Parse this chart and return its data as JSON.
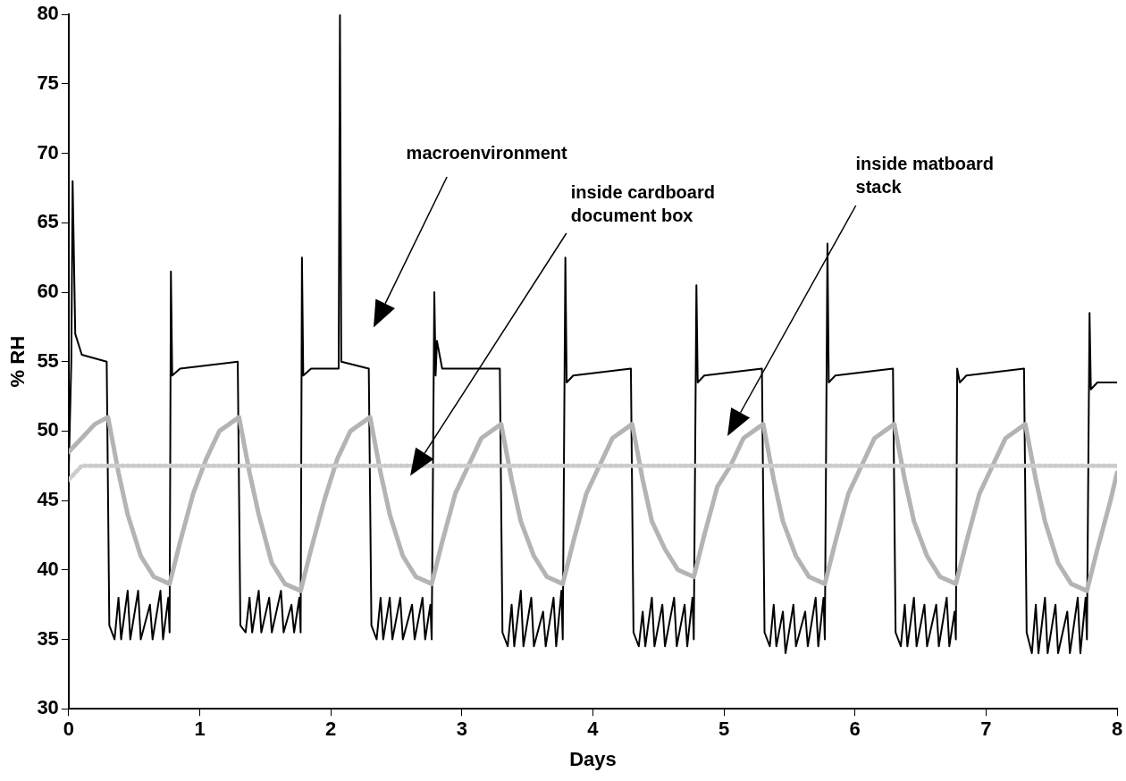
{
  "chart_data": {
    "type": "line",
    "xlabel": "Days",
    "ylabel": "% RH",
    "xlim": [
      0,
      8
    ],
    "xticks": [
      0,
      1,
      2,
      3,
      4,
      5,
      6,
      7,
      8
    ],
    "ylim": [
      30,
      80
    ],
    "yticks": [
      30,
      35,
      40,
      45,
      50,
      55,
      60,
      65,
      70,
      75,
      80
    ],
    "grid": false,
    "legend": false,
    "marker": "none",
    "line_style": "solid",
    "series": [
      {
        "color": "#000000",
        "x": [
          0,
          0.02,
          0.03,
          0.05,
          0.1,
          0.29,
          0.31,
          0.35,
          0.38,
          0.4,
          0.45,
          0.47,
          0.53,
          0.55,
          0.62,
          0.64,
          0.7,
          0.72,
          0.76,
          0.77,
          0.78,
          0.79,
          0.85,
          1.29,
          1.31,
          1.35,
          1.38,
          1.4,
          1.45,
          1.47,
          1.53,
          1.55,
          1.62,
          1.64,
          1.7,
          1.72,
          1.76,
          1.77,
          1.78,
          1.79,
          1.85,
          2.06,
          2.07,
          2.08,
          2.29,
          2.31,
          2.35,
          2.38,
          2.4,
          2.45,
          2.47,
          2.53,
          2.55,
          2.62,
          2.64,
          2.7,
          2.72,
          2.76,
          2.77,
          2.79,
          2.8,
          2.81,
          2.85,
          3.29,
          3.31,
          3.35,
          3.38,
          3.4,
          3.45,
          3.47,
          3.53,
          3.55,
          3.62,
          3.64,
          3.7,
          3.72,
          3.76,
          3.77,
          3.79,
          3.8,
          3.85,
          4.29,
          4.31,
          4.35,
          4.38,
          4.4,
          4.45,
          4.47,
          4.53,
          4.55,
          4.62,
          4.64,
          4.7,
          4.72,
          4.76,
          4.77,
          4.79,
          4.8,
          4.85,
          5.29,
          5.31,
          5.35,
          5.38,
          5.4,
          5.45,
          5.47,
          5.53,
          5.55,
          5.62,
          5.64,
          5.7,
          5.72,
          5.76,
          5.77,
          5.79,
          5.8,
          5.85,
          6.29,
          6.31,
          6.35,
          6.38,
          6.4,
          6.45,
          6.47,
          6.53,
          6.55,
          6.62,
          6.64,
          6.7,
          6.72,
          6.76,
          6.77,
          6.78,
          6.8,
          6.85,
          7.29,
          7.31,
          7.35,
          7.38,
          7.4,
          7.45,
          7.47,
          7.53,
          7.55,
          7.62,
          7.64,
          7.7,
          7.72,
          7.76,
          7.77,
          7.79,
          7.8,
          7.85,
          8
        ],
        "values": [
          47,
          55,
          68,
          57,
          55.5,
          55,
          36,
          35,
          38,
          35,
          38.5,
          35,
          38.5,
          35,
          37.5,
          35,
          38.5,
          35,
          38,
          35.5,
          61.5,
          54,
          54.5,
          55,
          36,
          35.5,
          38,
          35.5,
          38.5,
          35.5,
          38,
          35.5,
          38.5,
          35.5,
          37.5,
          35.5,
          38,
          35.5,
          62.5,
          54,
          54.5,
          54.5,
          80,
          55,
          54.5,
          36,
          35,
          38,
          35,
          38,
          35,
          38,
          35,
          37.5,
          35,
          38,
          35,
          37.5,
          35,
          60,
          54,
          56.5,
          54.5,
          54.5,
          35.5,
          34.5,
          37.5,
          34.5,
          38.5,
          34.5,
          38,
          34.5,
          37,
          34.5,
          38,
          34.5,
          38.5,
          35,
          62.5,
          53.5,
          54,
          54.5,
          35.5,
          34.5,
          37,
          34.5,
          38,
          34.5,
          37.5,
          34.5,
          38,
          34.5,
          37.5,
          34.5,
          38,
          35,
          60.5,
          53.5,
          54,
          54.5,
          35.5,
          34.5,
          37.5,
          34.5,
          37,
          34,
          37.5,
          34.5,
          37,
          34.5,
          38,
          34.5,
          38,
          35,
          63.5,
          53.5,
          54,
          54.5,
          35.5,
          34.5,
          37.5,
          34.5,
          38,
          34.5,
          37.5,
          34.5,
          37.5,
          34.5,
          38,
          34.5,
          37,
          35,
          54.5,
          53.5,
          54,
          54.5,
          35.5,
          34,
          37.5,
          34,
          38,
          34,
          37.5,
          34,
          37,
          34,
          38,
          34,
          38,
          35,
          58.5,
          53,
          53.5,
          53.5
        ]
      },
      {
        "color": "#b4b4b4",
        "x": [
          0,
          0.1,
          0.2,
          0.3,
          0.38,
          0.45,
          0.55,
          0.65,
          0.77,
          0.85,
          0.95,
          1.05,
          1.15,
          1.3,
          1.38,
          1.45,
          1.55,
          1.65,
          1.77,
          1.85,
          1.95,
          2.05,
          2.15,
          2.3,
          2.38,
          2.45,
          2.55,
          2.65,
          2.77,
          2.85,
          2.95,
          3.05,
          3.15,
          3.3,
          3.38,
          3.45,
          3.55,
          3.65,
          3.77,
          3.85,
          3.95,
          4.05,
          4.15,
          4.3,
          4.38,
          4.45,
          4.55,
          4.65,
          4.77,
          4.85,
          4.95,
          5.05,
          5.15,
          5.3,
          5.38,
          5.45,
          5.55,
          5.65,
          5.77,
          5.85,
          5.95,
          6.05,
          6.15,
          6.3,
          6.38,
          6.45,
          6.55,
          6.65,
          6.77,
          6.85,
          6.95,
          7.05,
          7.15,
          7.3,
          7.38,
          7.45,
          7.55,
          7.65,
          7.77,
          7.85,
          7.95,
          8
        ],
        "values": [
          48.5,
          49.5,
          50.5,
          51,
          47,
          44,
          41,
          39.5,
          39,
          42,
          45.5,
          48,
          50,
          51,
          47,
          44,
          40.5,
          39,
          38.5,
          41.5,
          45,
          48,
          50,
          51,
          47,
          44,
          41,
          39.5,
          39,
          42,
          45.5,
          47.5,
          49.5,
          50.5,
          46.5,
          43.5,
          41,
          39.5,
          39,
          42,
          45.5,
          47.5,
          49.5,
          50.5,
          46.5,
          43.5,
          41.5,
          40,
          39.5,
          42.5,
          46,
          47.5,
          49.5,
          50.5,
          46.5,
          43.5,
          41,
          39.5,
          39,
          42,
          45.5,
          47.5,
          49.5,
          50.5,
          46.5,
          43.5,
          41,
          39.5,
          39,
          42,
          45.5,
          47.5,
          49.5,
          50.5,
          46.5,
          43.5,
          40.5,
          39,
          38.5,
          41.5,
          45,
          47
        ]
      },
      {
        "color": "#cccccc",
        "line_style": "dotted",
        "x": [
          0,
          0.05,
          0.1,
          8
        ],
        "values": [
          46.5,
          47,
          47.5,
          47.5
        ]
      }
    ],
    "annotations": [
      "macroenvironment",
      "inside cardboard\ndocument box",
      "inside matboard\nstack"
    ]
  }
}
